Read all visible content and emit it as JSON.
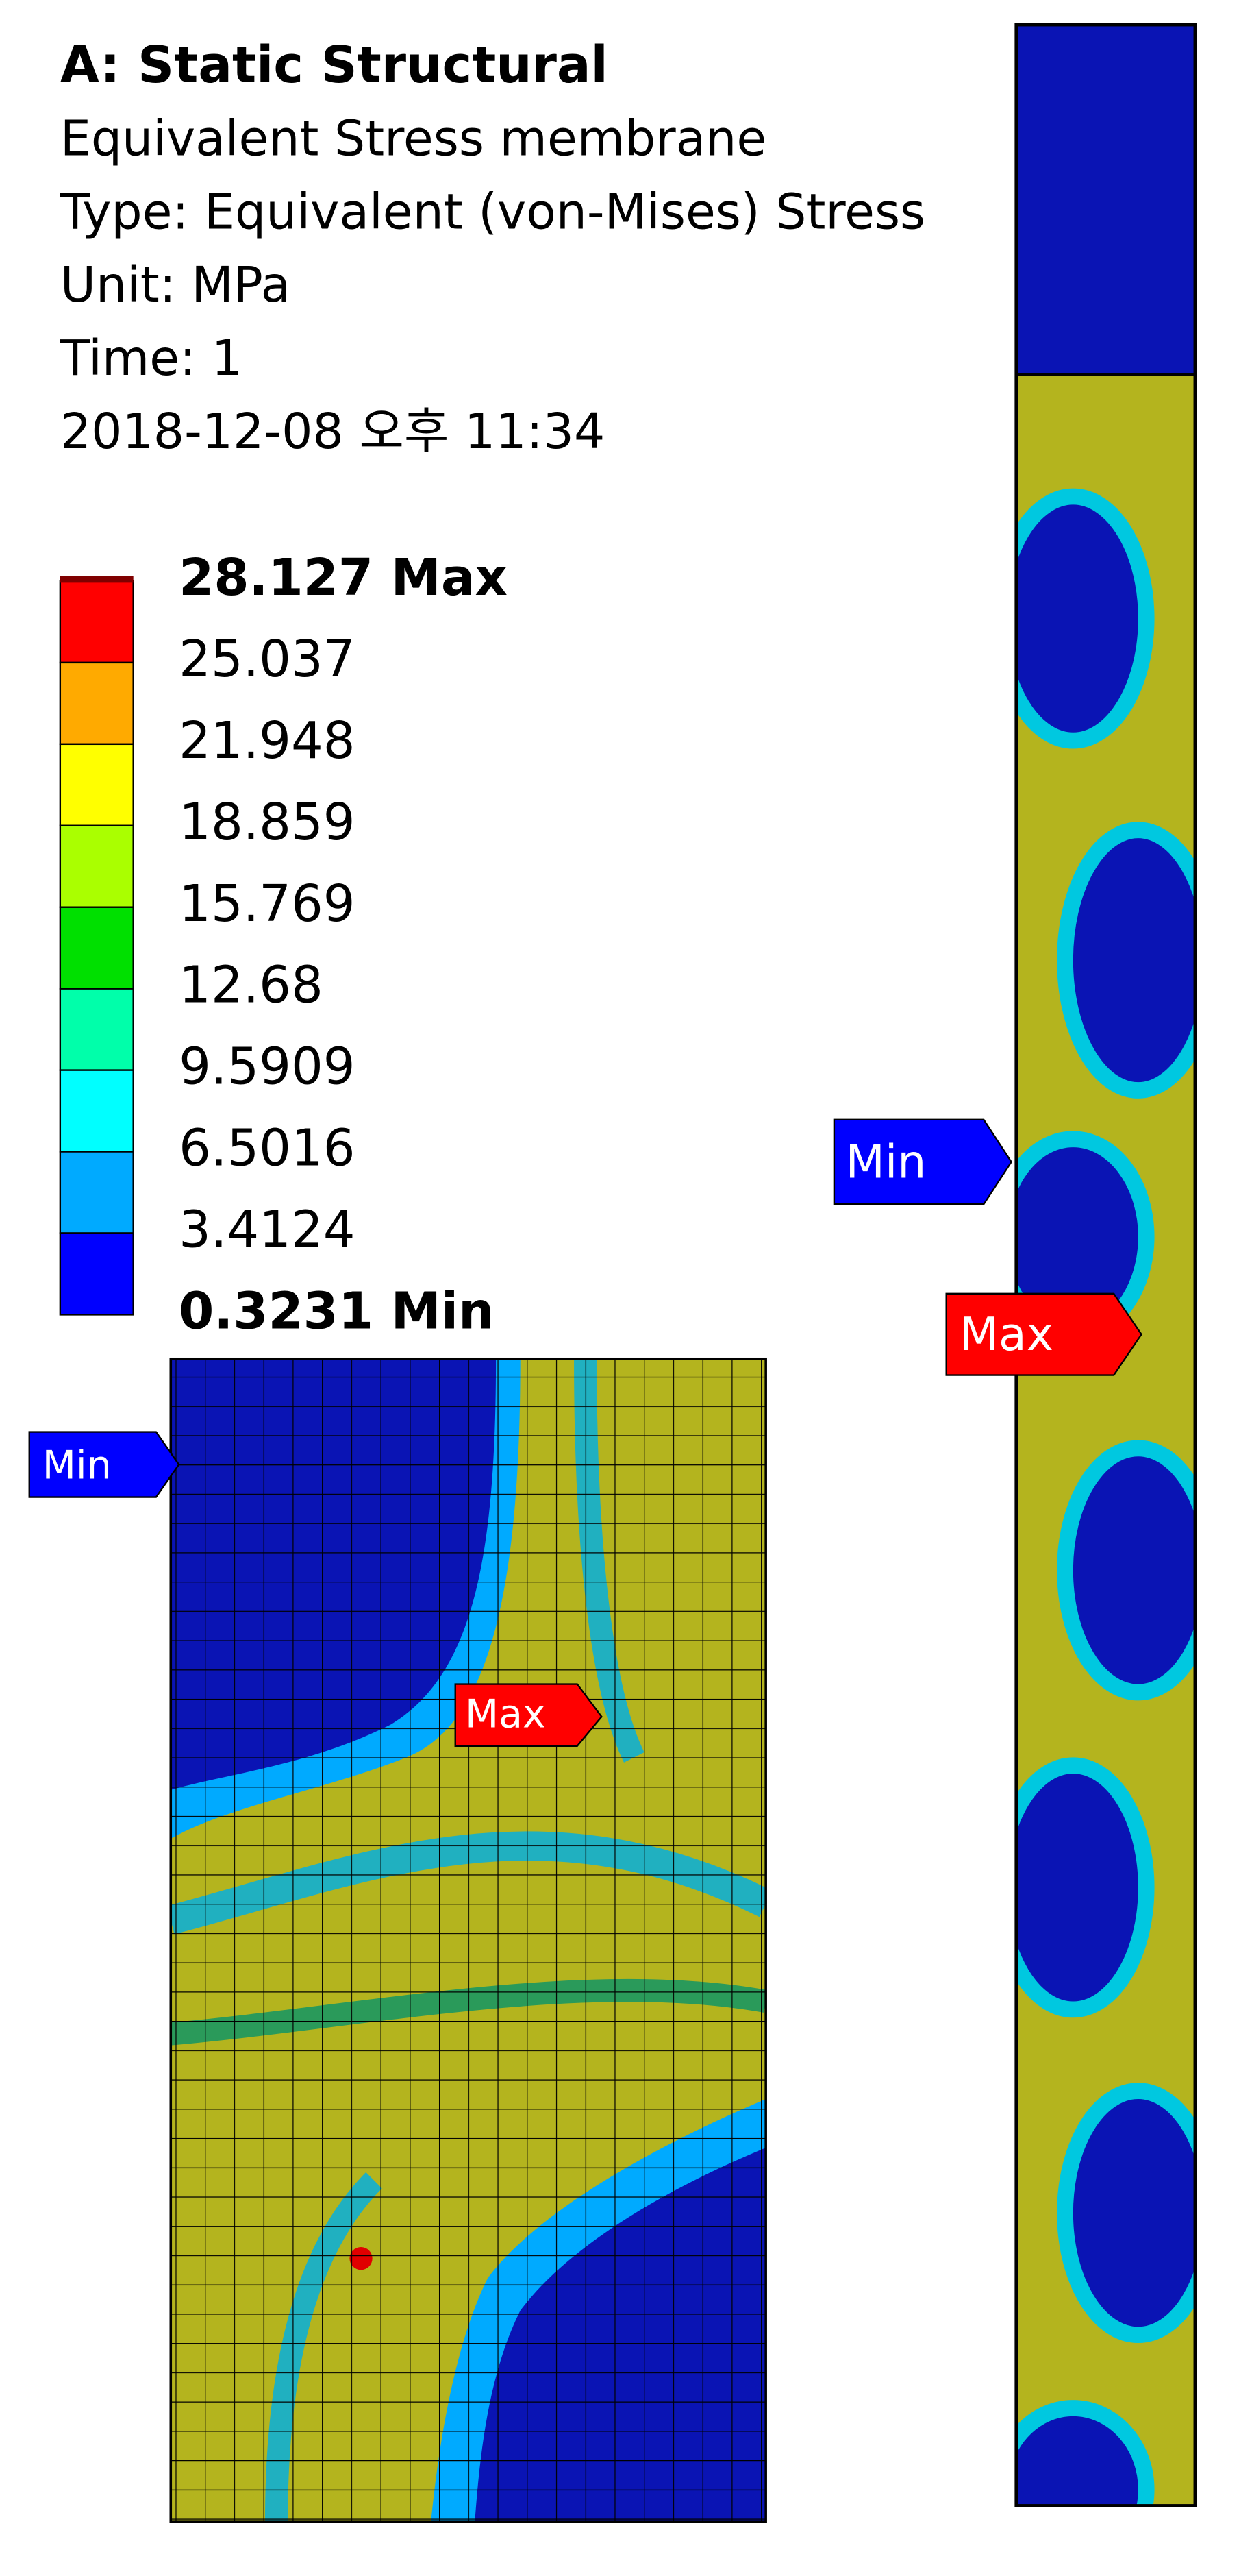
{
  "header": {
    "title": "A: Static Structural",
    "lines": [
      "Equivalent Stress membrane",
      "Type: Equivalent (von-Mises) Stress",
      "Unit: MPa",
      "Time: 1",
      "2018-12-08 오후 11:34"
    ]
  },
  "legend": {
    "labels": [
      "28.127 Max",
      "25.037",
      "21.948",
      "18.859",
      "15.769",
      "12.68",
      "9.5909",
      "6.5016",
      "3.4124",
      "0.3231 Min"
    ],
    "colors": [
      "#ff0000",
      "#ffaa00",
      "#ffff00",
      "#aaff00",
      "#00e000",
      "#00ffaa",
      "#00ffff",
      "#00aaff",
      "#0000ff"
    ]
  },
  "detail_view": {
    "min_label": "Min",
    "max_label": "Max"
  },
  "strip_view": {
    "min_label": "Min",
    "max_label": "Max"
  }
}
